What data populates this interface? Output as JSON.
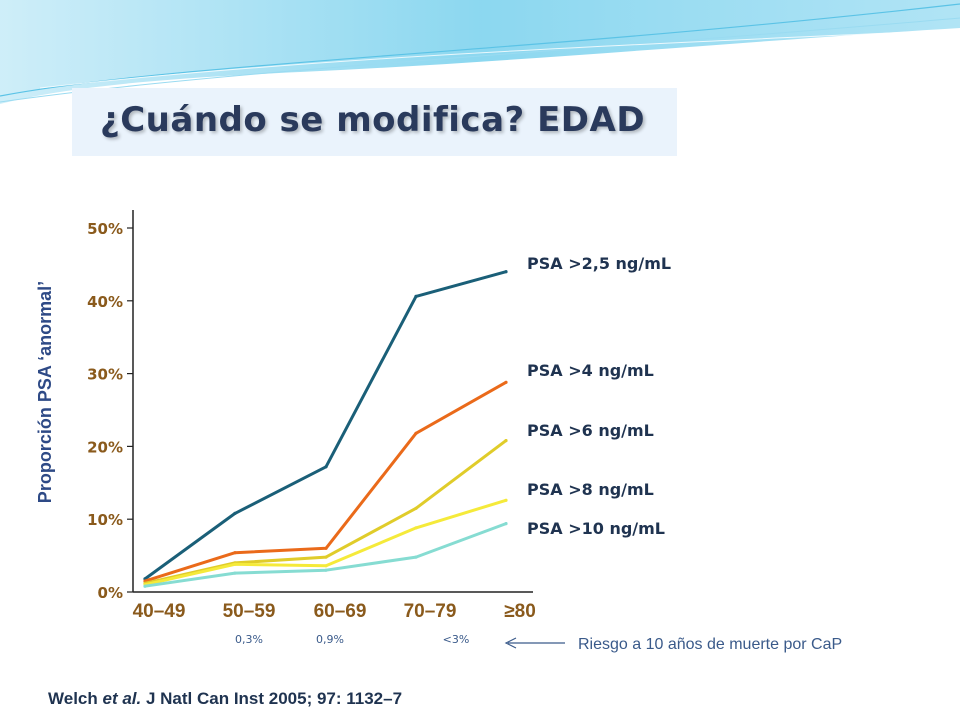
{
  "slide": {
    "title": "¿Cuándo se modifica? EDAD",
    "citation_authors": "Welch ",
    "citation_etal": "et al.",
    "citation_rest": " J Natl Can Inst 2005; 97: 1132–7",
    "colors": {
      "title": "#2a3a5c",
      "axis_text": "#8a5a1c",
      "label_text": "#1f3350",
      "ylabel": "#2e4a86",
      "header_wave": "#7fd3ee"
    }
  },
  "chart_data": {
    "type": "line",
    "title": "",
    "xlabel": "",
    "ylabel": "Proporción PSA ‘anormal’",
    "categories": [
      "40–49",
      "50–59",
      "60–69",
      "70–79",
      "≥80"
    ],
    "ylim": [
      0,
      50
    ],
    "yticks": [
      0,
      10,
      20,
      30,
      40,
      50
    ],
    "ytick_labels": [
      "0%",
      "10%",
      "20%",
      "30%",
      "40%",
      "50%"
    ],
    "grid": false,
    "series": [
      {
        "name": "PSA >2,5 ng/mL",
        "color": "#1a5f78",
        "values": [
          1.8,
          10.8,
          17.2,
          40.6,
          44.0
        ]
      },
      {
        "name": "PSA >4 ng/mL",
        "color": "#ea6a1a",
        "values": [
          1.5,
          5.4,
          6.0,
          21.8,
          28.8
        ]
      },
      {
        "name": "PSA >6 ng/mL",
        "color": "#e0cc2a",
        "values": [
          1.2,
          4.0,
          4.8,
          11.5,
          20.8
        ]
      },
      {
        "name": "PSA >8 ng/mL",
        "color": "#f5ea3a",
        "values": [
          1.0,
          3.8,
          3.6,
          8.8,
          12.6
        ]
      },
      {
        "name": "PSA >10 ng/mL",
        "color": "#86dcd2",
        "values": [
          0.8,
          2.6,
          3.0,
          4.8,
          9.4
        ]
      }
    ],
    "risk_annotations": [
      "0,3%",
      "0,9%",
      "<3%"
    ],
    "risk_label": "Riesgo a 10 años de muerte por CaP"
  }
}
